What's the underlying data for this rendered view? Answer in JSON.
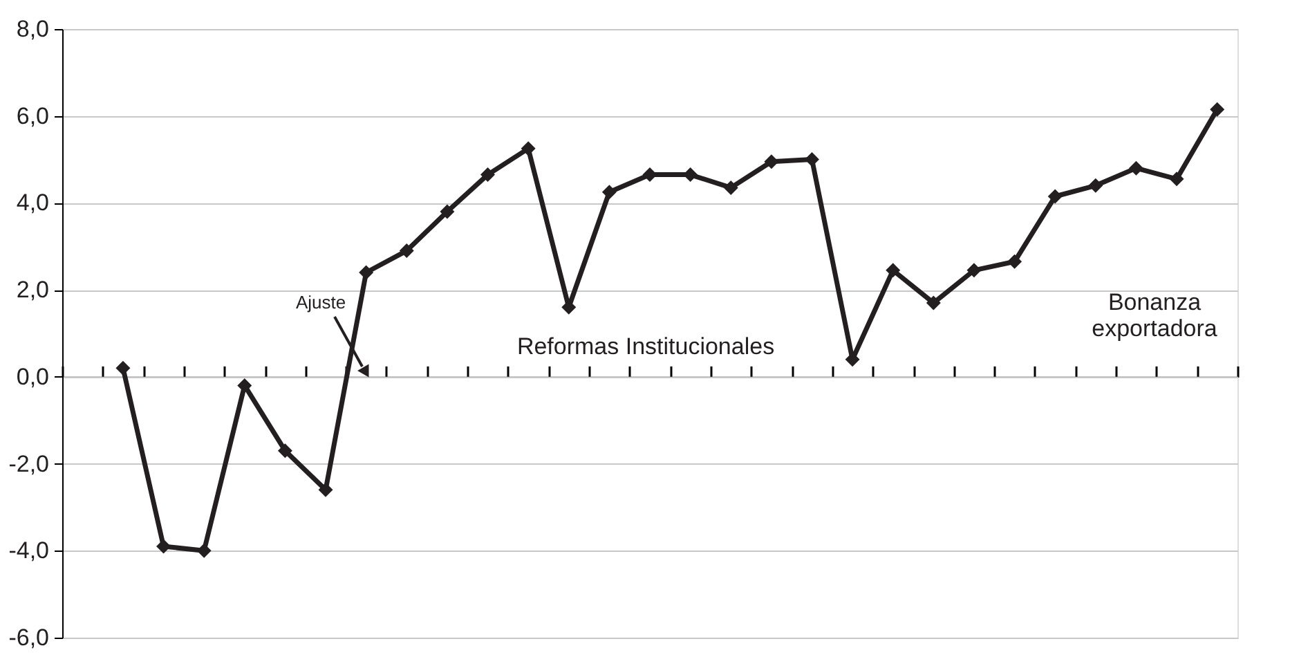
{
  "chart_data": {
    "type": "line",
    "categories": [
      null,
      null,
      null,
      null,
      null,
      null,
      null,
      null,
      null,
      null,
      null,
      null,
      null,
      null,
      null,
      null,
      null,
      null,
      null,
      null,
      null,
      null,
      null,
      null,
      null,
      null,
      null,
      null,
      null
    ],
    "series": [
      {
        "color": "#231f20",
        "values": [
          null,
          0.2,
          -3.9,
          -4.0,
          -0.2,
          -1.7,
          -2.6,
          2.4,
          2.9,
          3.8,
          4.65,
          5.25,
          1.6,
          4.25,
          4.65,
          4.65,
          4.35,
          4.95,
          5.0,
          0.4,
          2.45,
          1.7,
          2.45,
          2.65,
          4.15,
          4.4,
          4.8,
          4.55,
          6.15
        ]
      }
    ],
    "ylim": [
      -6,
      8
    ],
    "yticks": [
      {
        "value": -6,
        "label": "-6,0"
      },
      {
        "value": -4,
        "label": "-4,0"
      },
      {
        "value": -2,
        "label": "-2,0"
      },
      {
        "value": 0,
        "label": "0,0"
      },
      {
        "value": 2,
        "label": "2,0"
      },
      {
        "value": 4,
        "label": "4,0"
      },
      {
        "value": 6,
        "label": "6,0"
      },
      {
        "value": 8,
        "label": "8,0"
      }
    ],
    "grid": "y",
    "marker": "diamond",
    "line_style": "solid",
    "tick_labels": "y",
    "annotations": [
      "Ajuste",
      "Reformas Institucionales",
      "Bonanza\nexportadora"
    ]
  }
}
